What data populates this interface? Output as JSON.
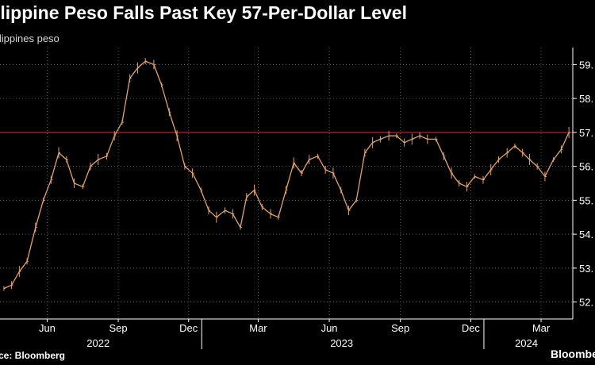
{
  "chart_data": {
    "type": "line",
    "title": "ilippine Peso Falls Past Key 57-Per-Dollar Level",
    "subtitle": "ilippines peso",
    "source": "ce: Bloomberg",
    "logo": "Bloomberg",
    "y_ticks": [
      "52.",
      "53.",
      "54.",
      "55.",
      "56.",
      "57.",
      "58.",
      "59."
    ],
    "y_tick_values": [
      52,
      53,
      54,
      55,
      56,
      57,
      58,
      59
    ],
    "ylim": [
      51.5,
      59.5
    ],
    "x_months": [
      "Jun",
      "Sep",
      "Dec",
      "Mar",
      "Jun",
      "Sep",
      "Dec",
      "Mar"
    ],
    "x_years": [
      "2022",
      "2023",
      "2024"
    ],
    "reference_line": 57.0,
    "colors": {
      "series": "#e2a26c",
      "reference": "#b22424",
      "grid": "#5a5a5a",
      "axis": "#ffffff",
      "background": "#000000"
    },
    "grid": true,
    "series": [
      {
        "x": [
          "2022-04-20",
          "2022-04-30",
          "2022-05-10",
          "2022-05-20",
          "2022-05-31",
          "2022-06-10",
          "2022-06-20",
          "2022-06-30",
          "2022-07-10",
          "2022-07-20",
          "2022-07-31",
          "2022-08-10",
          "2022-08-20",
          "2022-08-31",
          "2022-09-10",
          "2022-09-20",
          "2022-09-30",
          "2022-10-10",
          "2022-10-20",
          "2022-10-31",
          "2022-11-10",
          "2022-11-20",
          "2022-11-30",
          "2022-12-10",
          "2022-12-20",
          "2022-12-31",
          "2023-01-10",
          "2023-01-20",
          "2023-01-31",
          "2023-02-10",
          "2023-02-20",
          "2023-02-28",
          "2023-03-10",
          "2023-03-20",
          "2023-03-31",
          "2023-04-10",
          "2023-04-20",
          "2023-04-30",
          "2023-05-10",
          "2023-05-20",
          "2023-05-31",
          "2023-06-10",
          "2023-06-20",
          "2023-06-30",
          "2023-07-10",
          "2023-07-20",
          "2023-07-31",
          "2023-08-10",
          "2023-08-20",
          "2023-08-31",
          "2023-09-10",
          "2023-09-20",
          "2023-09-30",
          "2023-10-10",
          "2023-10-20",
          "2023-10-31",
          "2023-11-10",
          "2023-11-20",
          "2023-11-30",
          "2023-12-10",
          "2023-12-20",
          "2023-12-31",
          "2024-01-10",
          "2024-01-20",
          "2024-01-31",
          "2024-02-10",
          "2024-02-20",
          "2024-02-29",
          "2024-03-10",
          "2024-03-20",
          "2024-03-31",
          "2024-04-10",
          "2024-04-20"
        ],
        "values": [
          52.4,
          52.5,
          52.9,
          53.2,
          54.2,
          55.0,
          55.6,
          56.4,
          56.2,
          55.5,
          55.4,
          56.0,
          56.2,
          56.3,
          56.9,
          57.3,
          58.6,
          58.9,
          59.1,
          59.0,
          58.4,
          57.6,
          56.9,
          56.0,
          55.8,
          55.3,
          54.7,
          54.5,
          54.7,
          54.6,
          54.2,
          55.1,
          55.3,
          54.8,
          54.6,
          54.5,
          55.3,
          56.1,
          55.8,
          56.2,
          56.3,
          55.9,
          55.8,
          55.3,
          54.7,
          55.0,
          56.4,
          56.7,
          56.8,
          56.9,
          56.9,
          56.7,
          56.8,
          56.9,
          56.8,
          56.8,
          56.3,
          55.8,
          55.5,
          55.4,
          55.7,
          55.6,
          55.9,
          56.2,
          56.4,
          56.6,
          56.4,
          56.2,
          56.0,
          55.7,
          56.2,
          56.5,
          57.0
        ]
      }
    ]
  }
}
